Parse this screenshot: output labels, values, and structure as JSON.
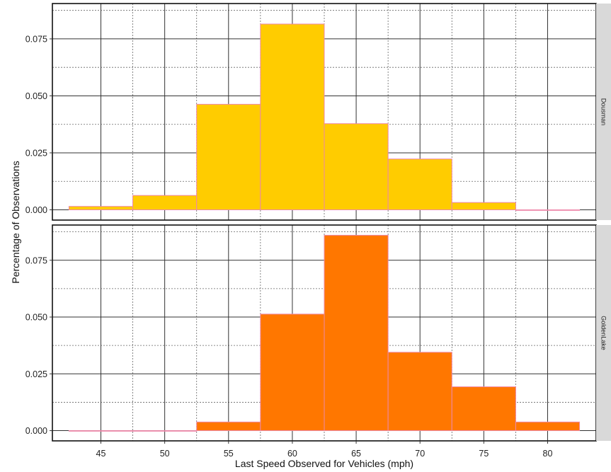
{
  "chart_data": {
    "type": "bar",
    "subtype": "faceted-histogram",
    "xlabel": "Last Speed Observed for Vehicles (mph)",
    "ylabel": "Percentage of Observations",
    "x_ticks": [
      45,
      50,
      55,
      60,
      65,
      70,
      75,
      80
    ],
    "xlim": [
      41.2,
      83.8
    ],
    "bin_width": 5,
    "bin_centers": [
      45,
      50,
      55,
      60,
      65,
      70,
      75,
      80
    ],
    "grid": true,
    "facets": [
      {
        "name": "Dousman",
        "fill": "#FFCC00",
        "edge": "#EE88AA",
        "values": [
          0.0015,
          0.0063,
          0.0463,
          0.0815,
          0.0378,
          0.0223,
          0.0032,
          0.0
        ],
        "y_ticks": [
          0.0,
          0.025,
          0.05,
          0.075
        ],
        "y_tick_labels": [
          "0.000",
          "0.025",
          "0.050",
          "0.075"
        ],
        "ylim": [
          -0.0045,
          0.0905
        ]
      },
      {
        "name": "GoldenLake",
        "fill": "#FF7700",
        "edge": "#EE88AA",
        "values": [
          0.0,
          0.0,
          0.0038,
          0.0513,
          0.086,
          0.0345,
          0.0193,
          0.0038
        ],
        "y_ticks": [
          0.0,
          0.025,
          0.05,
          0.075
        ],
        "y_tick_labels": [
          "0.000",
          "0.025",
          "0.050",
          "0.075"
        ],
        "ylim": [
          -0.0045,
          0.0905
        ]
      }
    ],
    "colors": {
      "grid_major": "#333333",
      "grid_minor": "#666666",
      "panel_border": "#111111",
      "strip_bg": "#D9D9D9"
    }
  }
}
